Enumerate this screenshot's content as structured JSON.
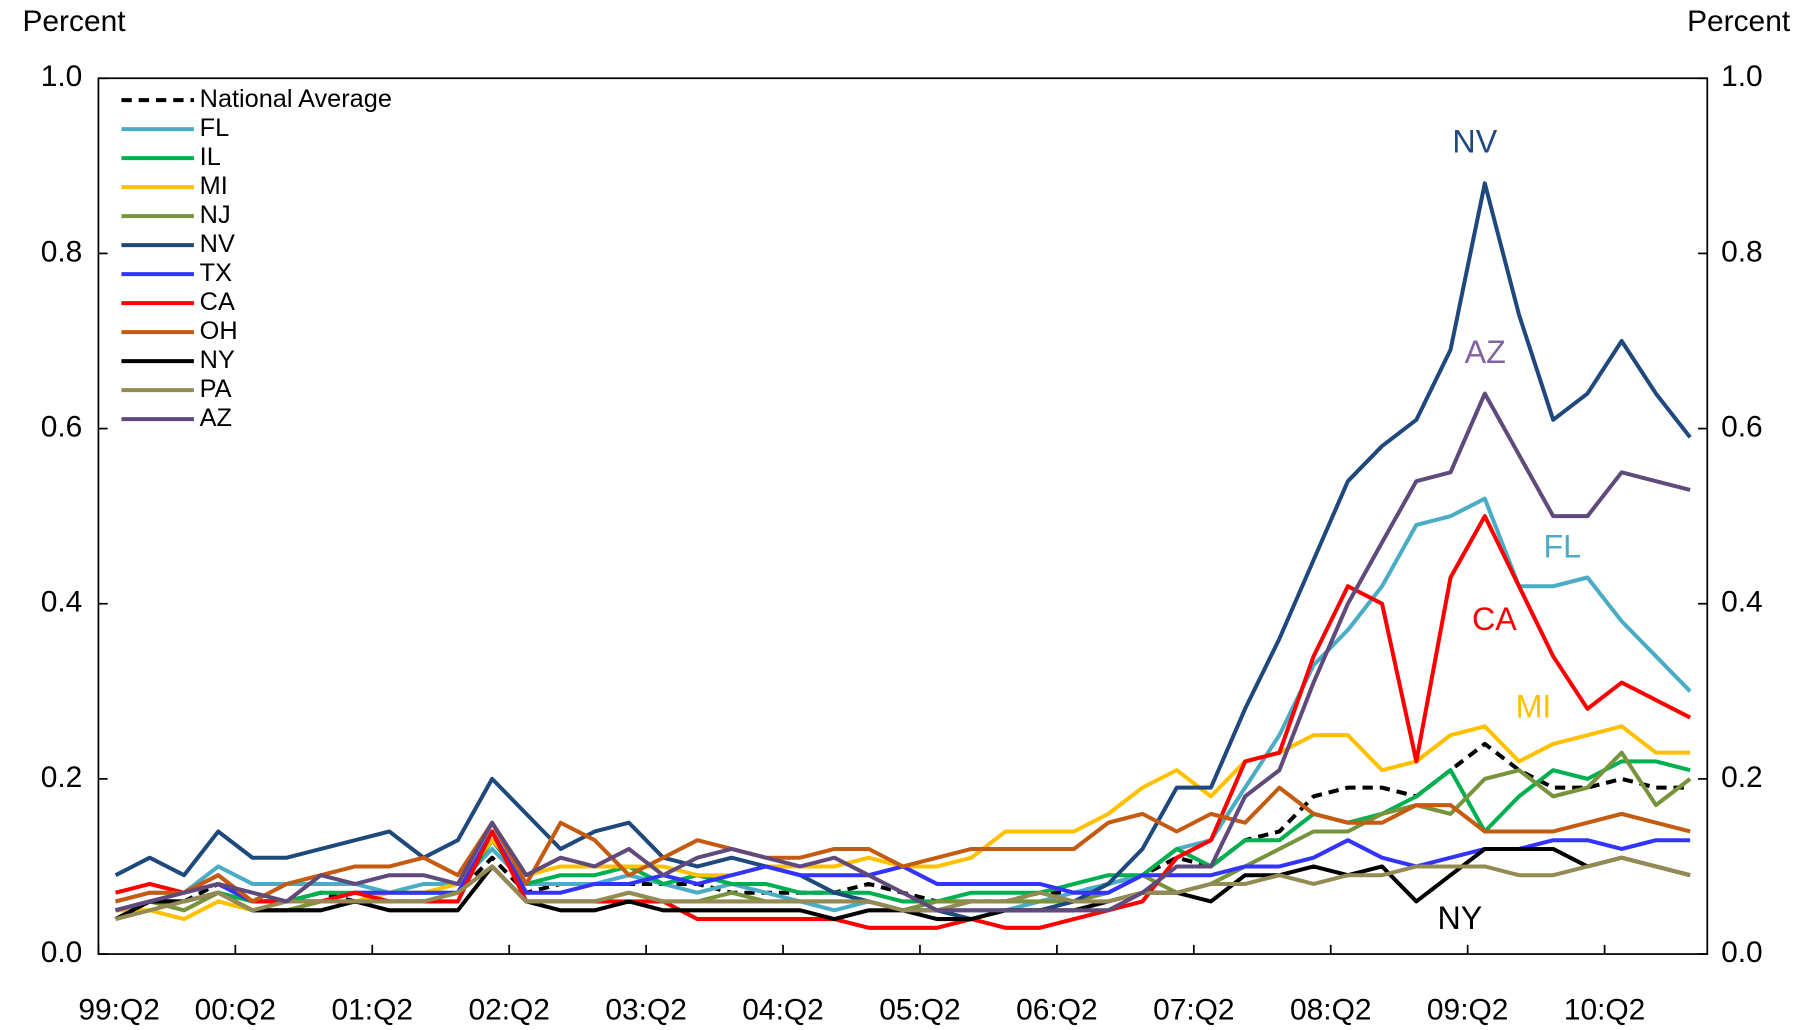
{
  "chart_data": {
    "type": "line",
    "ylabel": "Percent",
    "y2label": "Percent",
    "categories": [
      "99:Q2",
      null,
      null,
      null,
      "00:Q2",
      null,
      null,
      null,
      "01:Q2",
      null,
      null,
      null,
      "02:Q2",
      null,
      null,
      null,
      "03:Q2",
      null,
      null,
      null,
      "04:Q2",
      null,
      null,
      null,
      "05:Q2",
      null,
      null,
      null,
      "06:Q2",
      null,
      null,
      null,
      "07:Q2",
      null,
      null,
      null,
      "08:Q2",
      null,
      null,
      null,
      "09:Q2",
      null,
      null,
      null,
      "10:Q2",
      null,
      null
    ],
    "ylim": [
      0,
      1
    ],
    "yticks": [
      {
        "value": 0,
        "label": "0.0"
      },
      0.2,
      0.4,
      0.6,
      0.8,
      {
        "value": 1,
        "label": "1.0"
      }
    ],
    "y2lim": [
      0,
      1
    ],
    "y2ticks": [
      {
        "value": 0,
        "label": "0.0"
      },
      0.2,
      0.4,
      0.6,
      0.8,
      {
        "value": 1,
        "label": "1.0"
      }
    ],
    "legend": "upper left",
    "series": [
      {
        "name": "National Average",
        "color": "#000000",
        "dashed": true,
        "values": [
          0.05,
          0.06,
          0.06,
          0.08,
          0.06,
          0.06,
          0.07,
          0.06,
          0.06,
          0.06,
          0.07,
          0.11,
          0.07,
          0.08,
          0.08,
          0.08,
          0.08,
          0.08,
          0.07,
          0.07,
          0.07,
          0.07,
          0.08,
          0.07,
          0.06,
          0.06,
          0.06,
          0.07,
          0.07,
          0.08,
          0.09,
          0.11,
          0.1,
          0.13,
          0.14,
          0.18,
          0.19,
          0.19,
          0.18,
          0.21,
          0.24,
          0.21,
          0.19,
          0.19,
          0.2,
          0.19,
          0.19
        ]
      },
      {
        "name": "FL",
        "color": "#4bacc6",
        "values": [
          0.06,
          0.07,
          0.07,
          0.1,
          0.08,
          0.08,
          0.08,
          0.08,
          0.07,
          0.08,
          0.08,
          0.12,
          0.08,
          0.08,
          0.08,
          0.09,
          0.08,
          0.07,
          0.08,
          0.07,
          0.06,
          0.05,
          0.06,
          0.05,
          0.05,
          0.05,
          0.05,
          0.06,
          0.07,
          0.08,
          0.09,
          0.12,
          0.13,
          0.19,
          0.25,
          0.33,
          0.37,
          0.42,
          0.49,
          0.5,
          0.52,
          0.42,
          0.42,
          0.43,
          0.38,
          0.34,
          0.3
        ]
      },
      {
        "name": "IL",
        "color": "#00b050",
        "values": [
          0.05,
          0.06,
          0.06,
          0.07,
          0.06,
          0.06,
          0.07,
          0.07,
          0.07,
          0.07,
          0.07,
          0.13,
          0.08,
          0.09,
          0.09,
          0.1,
          0.08,
          0.09,
          0.08,
          0.08,
          0.07,
          0.07,
          0.07,
          0.06,
          0.06,
          0.07,
          0.07,
          0.07,
          0.08,
          0.09,
          0.09,
          0.12,
          0.1,
          0.13,
          0.13,
          0.16,
          0.15,
          0.16,
          0.18,
          0.21,
          0.14,
          0.18,
          0.21,
          0.2,
          0.22,
          0.22,
          0.21
        ]
      },
      {
        "name": "MI",
        "color": "#ffc000",
        "values": [
          0.05,
          0.05,
          0.04,
          0.06,
          0.05,
          0.06,
          0.06,
          0.06,
          0.07,
          0.07,
          0.08,
          0.13,
          0.09,
          0.1,
          0.1,
          0.1,
          0.1,
          0.09,
          0.09,
          0.1,
          0.1,
          0.1,
          0.11,
          0.1,
          0.1,
          0.11,
          0.14,
          0.14,
          0.14,
          0.16,
          0.19,
          0.21,
          0.18,
          0.22,
          0.23,
          0.25,
          0.25,
          0.21,
          0.22,
          0.25,
          0.26,
          0.22,
          0.24,
          0.25,
          0.26,
          0.23,
          0.23
        ]
      },
      {
        "name": "NJ",
        "color": "#77933c",
        "values": [
          0.04,
          0.06,
          0.05,
          0.07,
          0.05,
          0.05,
          0.06,
          0.06,
          0.06,
          0.06,
          0.07,
          0.1,
          0.06,
          0.06,
          0.06,
          0.07,
          0.06,
          0.06,
          0.07,
          0.06,
          0.06,
          0.06,
          0.06,
          0.05,
          0.06,
          0.06,
          0.06,
          0.06,
          0.06,
          0.07,
          0.09,
          0.07,
          0.08,
          0.1,
          0.12,
          0.14,
          0.14,
          0.16,
          0.17,
          0.16,
          0.2,
          0.21,
          0.18,
          0.19,
          0.23,
          0.17,
          0.2
        ]
      },
      {
        "name": "NV",
        "color": "#1f497d",
        "values": [
          0.09,
          0.11,
          0.09,
          0.14,
          0.11,
          0.11,
          0.12,
          0.13,
          0.14,
          0.11,
          0.13,
          0.2,
          0.16,
          0.12,
          0.14,
          0.15,
          0.11,
          0.1,
          0.11,
          0.1,
          0.09,
          0.07,
          0.06,
          0.05,
          0.05,
          0.04,
          0.05,
          0.05,
          0.06,
          0.08,
          0.12,
          0.19,
          0.19,
          0.28,
          0.36,
          0.45,
          0.54,
          0.58,
          0.61,
          0.69,
          0.88,
          0.73,
          0.61,
          0.64,
          0.7,
          0.64,
          0.59
        ]
      },
      {
        "name": "TX",
        "color": "#3333ff",
        "values": [
          0.05,
          0.06,
          0.07,
          0.08,
          0.06,
          0.06,
          0.06,
          0.07,
          0.07,
          0.07,
          0.07,
          0.14,
          0.07,
          0.07,
          0.08,
          0.08,
          0.09,
          0.08,
          0.09,
          0.1,
          0.09,
          0.09,
          0.09,
          0.1,
          0.08,
          0.08,
          0.08,
          0.08,
          0.07,
          0.07,
          0.09,
          0.09,
          0.09,
          0.1,
          0.1,
          0.11,
          0.13,
          0.11,
          0.1,
          0.11,
          0.12,
          0.12,
          0.13,
          0.13,
          0.12,
          0.13,
          0.13
        ]
      },
      {
        "name": "CA",
        "color": "#ff0000",
        "values": [
          0.07,
          0.08,
          0.07,
          0.09,
          0.06,
          0.06,
          0.06,
          0.07,
          0.06,
          0.06,
          0.06,
          0.14,
          0.06,
          0.06,
          0.06,
          0.06,
          0.06,
          0.04,
          0.04,
          0.04,
          0.04,
          0.04,
          0.03,
          0.03,
          0.03,
          0.04,
          0.03,
          0.03,
          0.04,
          0.05,
          0.06,
          0.11,
          0.13,
          0.22,
          0.23,
          0.34,
          0.42,
          0.4,
          0.22,
          0.43,
          0.5,
          0.42,
          0.34,
          0.28,
          0.31,
          0.29,
          0.27
        ]
      },
      {
        "name": "OH",
        "color": "#c55a11",
        "values": [
          0.06,
          0.07,
          0.07,
          0.09,
          0.06,
          0.08,
          0.09,
          0.1,
          0.1,
          0.11,
          0.09,
          0.15,
          0.08,
          0.15,
          0.13,
          0.09,
          0.11,
          0.13,
          0.12,
          0.11,
          0.11,
          0.12,
          0.12,
          0.1,
          0.11,
          0.12,
          0.12,
          0.12,
          0.12,
          0.15,
          0.16,
          0.14,
          0.16,
          0.15,
          0.19,
          0.16,
          0.15,
          0.15,
          0.17,
          0.17,
          0.14,
          0.14,
          0.14,
          0.15,
          0.16,
          0.15,
          0.14
        ]
      },
      {
        "name": "NY",
        "color": "#000000",
        "values": [
          0.04,
          0.06,
          0.06,
          0.07,
          0.05,
          0.05,
          0.05,
          0.06,
          0.05,
          0.05,
          0.05,
          0.1,
          0.06,
          0.05,
          0.05,
          0.06,
          0.05,
          0.05,
          0.05,
          0.05,
          0.05,
          0.04,
          0.05,
          0.05,
          0.04,
          0.04,
          0.05,
          0.05,
          0.05,
          0.06,
          0.07,
          0.07,
          0.06,
          0.09,
          0.09,
          0.1,
          0.09,
          0.1,
          0.06,
          0.09,
          0.12,
          0.12,
          0.12,
          0.1,
          0.11,
          0.1,
          0.09
        ]
      },
      {
        "name": "PA",
        "color": "#948a54",
        "values": [
          0.04,
          0.05,
          0.06,
          0.07,
          0.05,
          0.06,
          0.06,
          0.06,
          0.06,
          0.06,
          0.07,
          0.1,
          0.06,
          0.06,
          0.06,
          0.07,
          0.06,
          0.06,
          0.06,
          0.06,
          0.06,
          0.06,
          0.06,
          0.05,
          0.05,
          0.06,
          0.06,
          0.07,
          0.06,
          0.06,
          0.07,
          0.07,
          0.08,
          0.08,
          0.09,
          0.08,
          0.09,
          0.09,
          0.1,
          0.1,
          0.1,
          0.09,
          0.09,
          0.1,
          0.11,
          0.1,
          0.09
        ]
      },
      {
        "name": "AZ",
        "color": "#604a7b",
        "values": [
          0.05,
          0.06,
          0.07,
          0.08,
          0.07,
          0.06,
          0.09,
          0.08,
          0.09,
          0.09,
          0.08,
          0.15,
          0.09,
          0.11,
          0.1,
          0.12,
          0.09,
          0.11,
          0.12,
          0.11,
          0.1,
          0.11,
          0.09,
          0.07,
          0.05,
          0.05,
          0.05,
          0.05,
          0.05,
          0.05,
          0.07,
          0.1,
          0.1,
          0.18,
          0.21,
          0.31,
          0.4,
          0.47,
          0.54,
          0.55,
          0.64,
          0.57,
          0.5,
          0.5,
          0.55,
          0.54,
          0.53
        ]
      }
    ],
    "annotations": [
      {
        "text": "NV",
        "color": "#1f497d"
      },
      {
        "text": "AZ",
        "color": "#8064a2"
      },
      {
        "text": "FL",
        "color": "#4bacc6"
      },
      {
        "text": "CA",
        "color": "#ff0000"
      },
      {
        "text": "MI",
        "color": "#ffc000"
      },
      {
        "text": "NY",
        "color": "#000000"
      }
    ]
  }
}
